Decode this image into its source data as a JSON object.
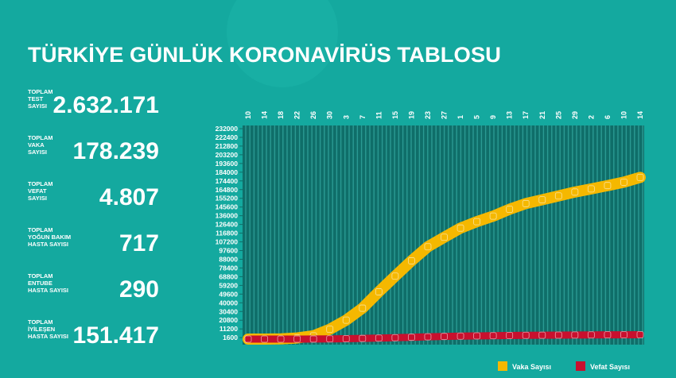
{
  "header": {
    "title": "TÜRKİYE GÜNLÜK KORONAVİRÜS TABLOSU"
  },
  "stats": [
    {
      "label": [
        "TOPLAM",
        "TEST",
        "SAYISI"
      ],
      "value": "2.632.171"
    },
    {
      "label": [
        "TOPLAM",
        "VAKA",
        "SAYISI"
      ],
      "value": "178.239"
    },
    {
      "label": [
        "TOPLAM",
        "VEFAT",
        "SAYISI"
      ],
      "value": "4.807"
    },
    {
      "label": [
        "TOPLAM",
        "YOĞUN BAKIM",
        "HASTA SAYISI"
      ],
      "value": "717"
    },
    {
      "label": [
        "TOPLAM",
        "ENTUBE",
        "HASTA SAYISI"
      ],
      "value": "290"
    },
    {
      "label": [
        "TOPLAM",
        "İYİLEŞEN",
        "HASTA SAYISI"
      ],
      "value": "151.417"
    }
  ],
  "chart_data": {
    "type": "line",
    "categories": [
      "10",
      "14",
      "18",
      "22",
      "26",
      "30",
      "3",
      "7",
      "11",
      "15",
      "19",
      "23",
      "27",
      "1",
      "5",
      "9",
      "13",
      "17",
      "21",
      "25",
      "29",
      "2",
      "6",
      "10",
      "14"
    ],
    "series": [
      {
        "name": "Vaka Sayısı",
        "color": "#f5b800",
        "values": [
          0,
          6,
          191,
          1236,
          3629,
          10827,
          20921,
          34109,
          52167,
          69392,
          86306,
          101790,
          112261,
          122392,
          129491,
          135569,
          143114,
          149435,
          153548,
          157814,
          162120,
          165555,
          169218,
          173036,
          178239
        ]
      },
      {
        "name": "Vefat Sayısı",
        "color": "#c8102e",
        "values": [
          0,
          0,
          4,
          30,
          75,
          214,
          425,
          725,
          1101,
          1518,
          2017,
          2491,
          2900,
          3258,
          3520,
          3739,
          3952,
          4140,
          4249,
          4369,
          4489,
          4585,
          4692,
          4729,
          4807
        ]
      }
    ],
    "ylim": [
      0,
      232000
    ],
    "yticks": [
      1600,
      11200,
      20800,
      30400,
      40000,
      49600,
      59200,
      68800,
      78400,
      88000,
      97600,
      107200,
      116800,
      126400,
      136000,
      145600,
      155200,
      164800,
      174400,
      184000,
      193600,
      203200,
      212800,
      222400,
      232000
    ]
  }
}
